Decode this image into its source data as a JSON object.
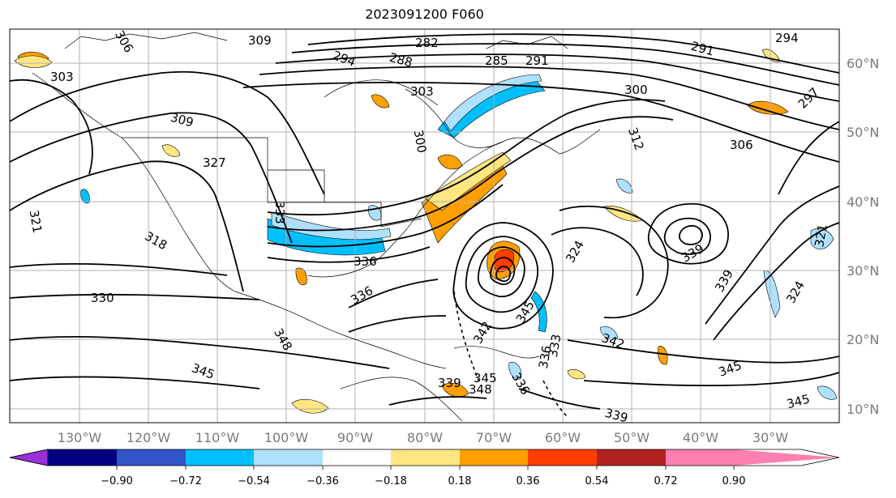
{
  "title": "2023091200 F060",
  "map": {
    "lon_labels": [
      "130°W",
      "120°W",
      "110°W",
      "100°W",
      "90°W",
      "80°W",
      "70°W",
      "60°W",
      "50°W",
      "40°W",
      "30°W"
    ],
    "lat_labels": [
      "60°N",
      "50°N",
      "40°N",
      "30°N",
      "20°N",
      "10°N"
    ],
    "contour_labels": [
      {
        "text": "306"
      },
      {
        "text": "309"
      },
      {
        "text": "303"
      },
      {
        "text": "294"
      },
      {
        "text": "288"
      },
      {
        "text": "285"
      },
      {
        "text": "282"
      },
      {
        "text": "291"
      },
      {
        "text": "294"
      },
      {
        "text": "291"
      },
      {
        "text": "297"
      },
      {
        "text": "300"
      },
      {
        "text": "303"
      },
      {
        "text": "300"
      },
      {
        "text": "309"
      },
      {
        "text": "321"
      },
      {
        "text": "312"
      },
      {
        "text": "306"
      },
      {
        "text": "327"
      },
      {
        "text": "333"
      },
      {
        "text": "318"
      },
      {
        "text": "321"
      },
      {
        "text": "336"
      },
      {
        "text": "330"
      },
      {
        "text": "336"
      },
      {
        "text": "324"
      },
      {
        "text": "339"
      },
      {
        "text": "339"
      },
      {
        "text": "324"
      },
      {
        "text": "345"
      },
      {
        "text": "342"
      },
      {
        "text": "342"
      },
      {
        "text": "348"
      },
      {
        "text": "345"
      },
      {
        "text": "345"
      },
      {
        "text": "339"
      },
      {
        "text": "345"
      },
      {
        "text": "348"
      },
      {
        "text": "336"
      },
      {
        "text": "333"
      },
      {
        "text": "336"
      },
      {
        "text": "339"
      },
      {
        "text": "345"
      }
    ]
  },
  "colorbar": {
    "labels": [
      "−0.90",
      "−0.72",
      "−0.54",
      "−0.36",
      "−0.18",
      "0.18",
      "0.36",
      "0.54",
      "0.72",
      "0.90"
    ],
    "colors": [
      "#9b30d9",
      "#000080",
      "#3355cc",
      "#00bfff",
      "#aee0ff",
      "#ffffff",
      "#ffe680",
      "#ffa000",
      "#ff3d00",
      "#b22222",
      "#ff80b0"
    ]
  }
}
